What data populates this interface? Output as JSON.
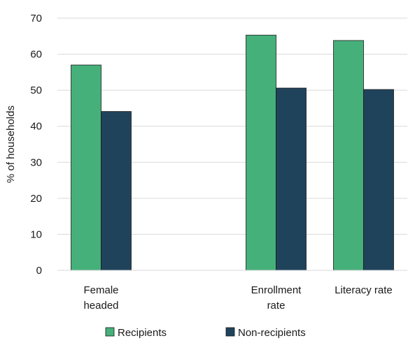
{
  "chart_data": {
    "type": "bar",
    "title": "",
    "xlabel": "",
    "ylabel": "% of households",
    "ylim": [
      0,
      70
    ],
    "yticks": [
      0,
      10,
      20,
      30,
      40,
      50,
      60,
      70
    ],
    "grid": true,
    "legend_position": "bottom",
    "categories": [
      {
        "lines": [
          "Female",
          "headed"
        ]
      },
      {
        "lines": [
          ""
        ]
      },
      {
        "lines": [
          "Enrollment",
          "rate"
        ]
      },
      {
        "lines": [
          "Literacy rate"
        ]
      }
    ],
    "series": [
      {
        "name": "Recipients",
        "color": "#46b07a",
        "values": [
          57,
          null,
          65.3,
          63.8
        ]
      },
      {
        "name": "Non-recipients",
        "color": "#20435c",
        "values": [
          44.1,
          null,
          50.6,
          50.2
        ]
      }
    ]
  }
}
